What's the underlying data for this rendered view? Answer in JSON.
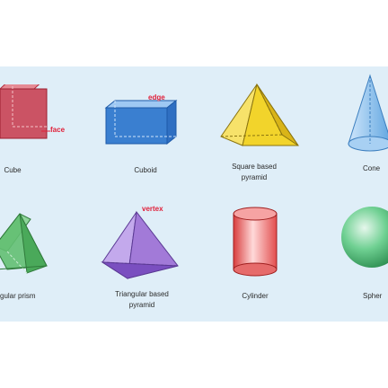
{
  "labels": {
    "cube": "Cube",
    "cuboid": "Cuboid",
    "square_pyramid_line1": "Square based",
    "square_pyramid_line2": "pyramid",
    "cone": "Cone",
    "triangular_prism": "gular prism",
    "triangular_pyramid_line1": "Triangular based",
    "triangular_pyramid_line2": "pyramid",
    "cylinder": "Cylinder",
    "sphere": "Spher"
  },
  "annotations": {
    "face": "face",
    "edge": "edge",
    "vertex": "vertex"
  },
  "colors": {
    "background": "#dfeef8",
    "cube": "#c8374a",
    "cuboid": "#3a7fd0",
    "square_pyramid": "#f2d42b",
    "cone": "#8fc6ee",
    "triangular_prism": "#63bf72",
    "triangular_pyramid": "#a27ad8",
    "cylinder": "#f06b6b",
    "sphere": "#4fbf7a",
    "annotation": "#e0203a"
  }
}
